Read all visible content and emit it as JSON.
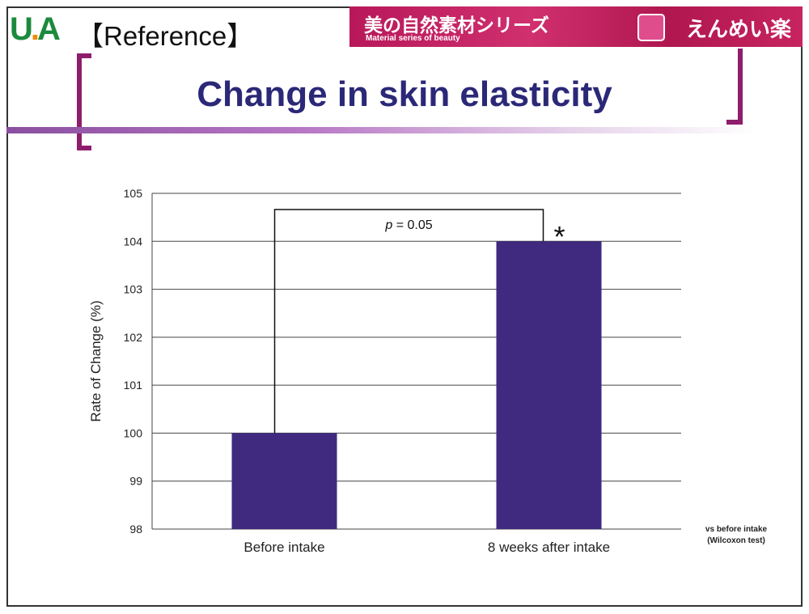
{
  "header": {
    "logo": "UA",
    "reference_label": "【Reference】",
    "banner_jp": "美の自然素材シリーズ",
    "banner_en": "Material series of beauty",
    "brand": "えんめい楽"
  },
  "title": "Change in skin elasticity",
  "colors": {
    "bar": "#3f2a80",
    "title": "#2b2878",
    "accent": "#8e1d6b"
  },
  "chart_data": {
    "type": "bar",
    "categories": [
      "Before intake",
      "8 weeks after intake"
    ],
    "values": [
      100,
      104
    ],
    "ylabel": "Rate of Change (%)",
    "xlabel": "",
    "ylim": [
      98,
      105
    ],
    "yticks": [
      98,
      99,
      100,
      101,
      102,
      103,
      104,
      105
    ],
    "grid": true,
    "annotation": {
      "p_prefix": "p",
      "p_text": " = 0.05",
      "significance": "*"
    },
    "note": [
      "vs before intake",
      "(Wilcoxon test)"
    ]
  }
}
